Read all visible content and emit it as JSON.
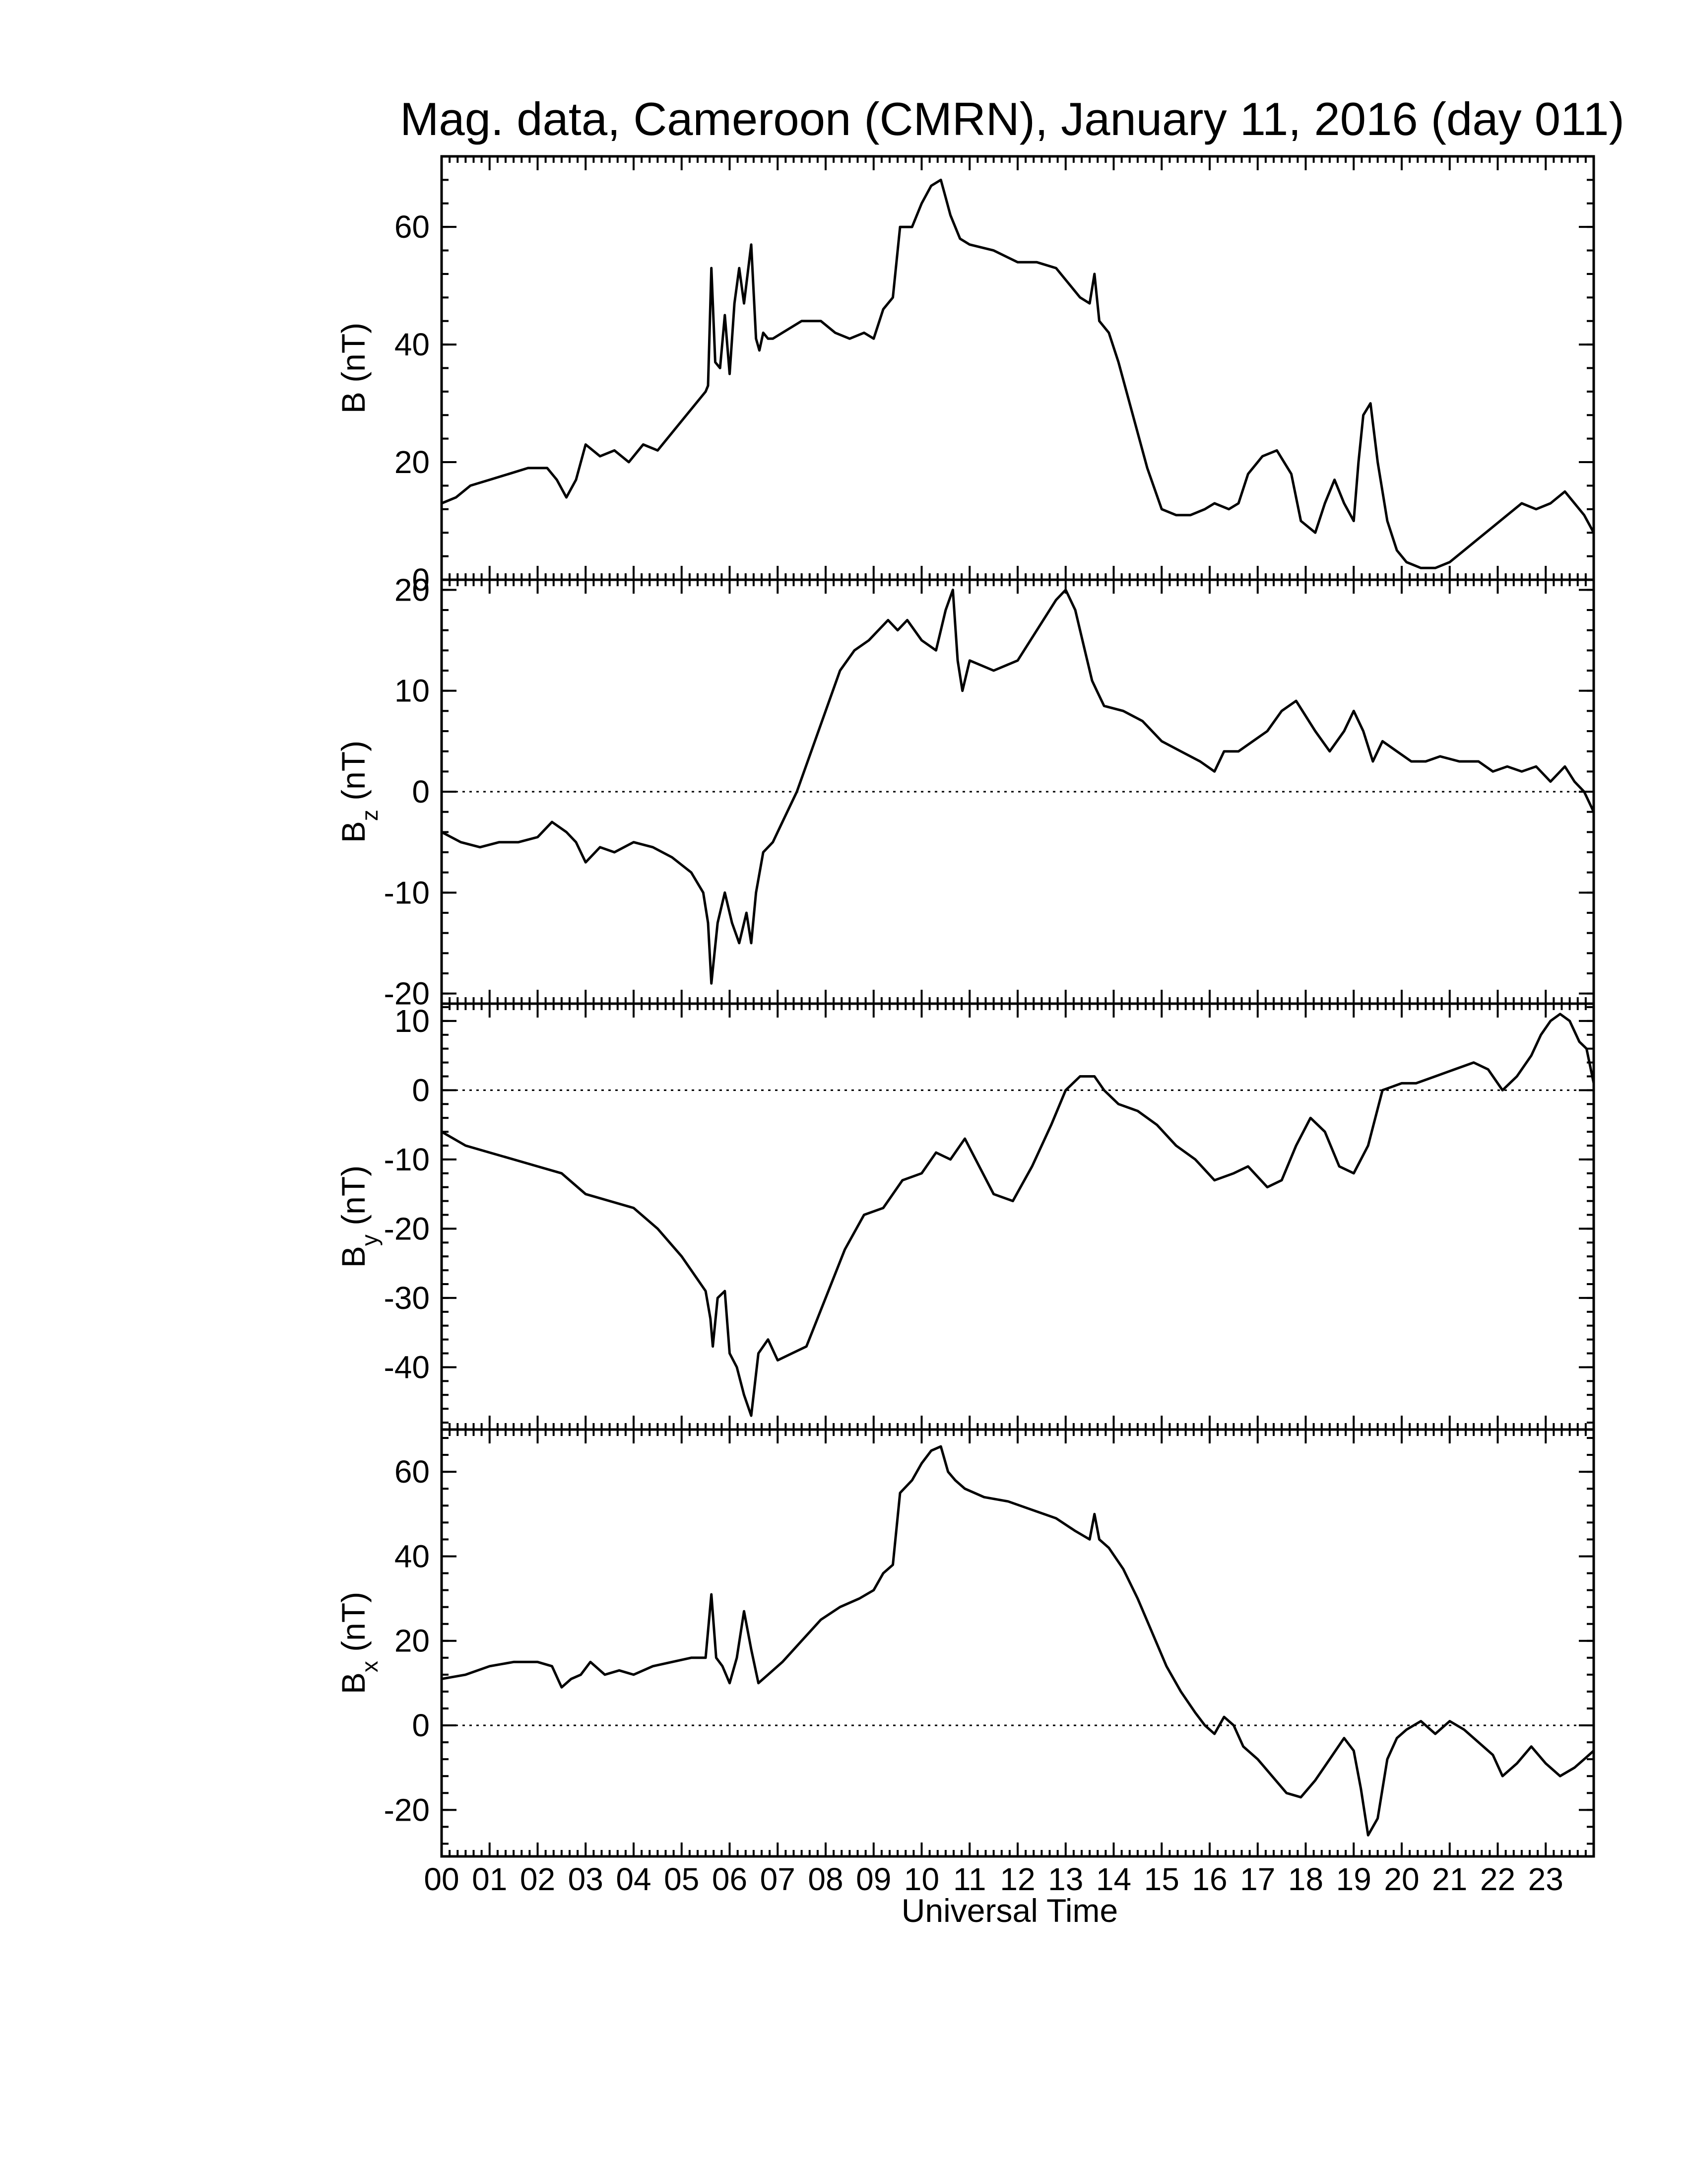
{
  "chart_data": {
    "type": "line",
    "title": "Mag. data, Cameroon (CMRN), January 11, 2016 (day 011)",
    "xlabel": "Universal Time",
    "x_tick_labels": [
      "00",
      "01",
      "02",
      "03",
      "04",
      "05",
      "06",
      "07",
      "08",
      "09",
      "10",
      "11",
      "12",
      "13",
      "14",
      "15",
      "16",
      "17",
      "18",
      "19",
      "20",
      "21",
      "22",
      "23"
    ],
    "xlim": [
      0,
      24
    ],
    "panels": [
      {
        "key": "B",
        "ylabel": "B (nT)",
        "ylabel_main": "B",
        "ylabel_sub": "",
        "ylabel_unit": " (nT)",
        "ylim": [
          0,
          72
        ],
        "yticks": [
          0,
          20,
          40,
          60
        ],
        "y_tick_labels": [
          "0",
          "20",
          "40",
          "60"
        ],
        "zero_line": false,
        "x": [
          0,
          0.3,
          0.6,
          1.0,
          1.4,
          1.8,
          2.2,
          2.4,
          2.6,
          2.8,
          3.0,
          3.3,
          3.6,
          3.9,
          4.2,
          4.5,
          5.0,
          5.3,
          5.5,
          5.55,
          5.62,
          5.7,
          5.8,
          5.9,
          6.0,
          6.1,
          6.2,
          6.3,
          6.45,
          6.55,
          6.62,
          6.7,
          6.8,
          6.9,
          7.1,
          7.5,
          7.9,
          8.2,
          8.5,
          8.8,
          9.0,
          9.2,
          9.4,
          9.55,
          9.8,
          10.0,
          10.2,
          10.4,
          10.5,
          10.6,
          10.8,
          11.0,
          11.5,
          12.0,
          12.4,
          12.8,
          13.0,
          13.3,
          13.5,
          13.6,
          13.7,
          13.9,
          14.1,
          14.4,
          14.7,
          15.0,
          15.3,
          15.6,
          15.9,
          16.1,
          16.4,
          16.6,
          16.8,
          17.1,
          17.4,
          17.7,
          17.9,
          18.2,
          18.4,
          18.6,
          18.8,
          19.0,
          19.1,
          19.2,
          19.35,
          19.5,
          19.7,
          19.9,
          20.1,
          20.4,
          20.7,
          21.0,
          21.3,
          21.6,
          21.9,
          22.2,
          22.5,
          22.8,
          23.1,
          23.4,
          23.6,
          23.8,
          24.0
        ],
        "values": [
          13,
          14,
          16,
          17,
          18,
          19,
          19,
          17,
          14,
          17,
          23,
          21,
          22,
          20,
          23,
          22,
          27,
          30,
          32,
          33,
          53,
          37,
          36,
          45,
          35,
          47,
          53,
          47,
          57,
          41,
          39,
          42,
          41,
          41,
          42,
          44,
          44,
          42,
          41,
          42,
          41,
          46,
          48,
          60,
          60,
          64,
          67,
          68,
          65,
          62,
          58,
          57,
          56,
          54,
          54,
          53,
          51,
          48,
          47,
          52,
          44,
          42,
          37,
          28,
          19,
          12,
          11,
          11,
          12,
          13,
          12,
          13,
          18,
          21,
          22,
          18,
          10,
          8,
          13,
          17,
          13,
          10,
          20,
          28,
          30,
          20,
          10,
          5,
          3,
          2,
          2,
          3,
          5,
          7,
          9,
          11,
          13,
          12,
          13,
          15,
          13,
          11,
          8
        ]
      },
      {
        "key": "Bz",
        "ylabel": "Bz (nT)",
        "ylabel_main": "B",
        "ylabel_sub": "z",
        "ylabel_unit": " (nT)",
        "ylim": [
          -21,
          21
        ],
        "yticks": [
          -20,
          -10,
          0,
          10,
          20
        ],
        "y_tick_labels": [
          "-20",
          "-10",
          "0",
          "10",
          "20"
        ],
        "zero_line": true,
        "x": [
          0,
          0.4,
          0.8,
          1.2,
          1.6,
          2.0,
          2.3,
          2.6,
          2.8,
          3.0,
          3.3,
          3.6,
          4.0,
          4.4,
          4.8,
          5.2,
          5.45,
          5.55,
          5.62,
          5.75,
          5.9,
          6.05,
          6.2,
          6.35,
          6.45,
          6.55,
          6.7,
          6.9,
          7.1,
          7.4,
          7.7,
          8.0,
          8.3,
          8.6,
          8.9,
          9.1,
          9.3,
          9.5,
          9.7,
          10.0,
          10.3,
          10.5,
          10.65,
          10.75,
          10.85,
          11.0,
          11.5,
          12.0,
          12.4,
          12.8,
          13.0,
          13.2,
          13.4,
          13.55,
          13.65,
          13.8,
          14.2,
          14.6,
          15.0,
          15.4,
          15.8,
          16.1,
          16.3,
          16.6,
          16.9,
          17.2,
          17.5,
          17.8,
          18.0,
          18.2,
          18.5,
          18.8,
          19.0,
          19.2,
          19.4,
          19.6,
          19.9,
          20.2,
          20.5,
          20.8,
          21.2,
          21.6,
          21.9,
          22.2,
          22.5,
          22.8,
          23.1,
          23.4,
          23.6,
          23.8,
          24.0
        ],
        "values": [
          -4,
          -5,
          -5.5,
          -5,
          -5,
          -4.5,
          -3,
          -4,
          -5,
          -7,
          -5.5,
          -6,
          -5,
          -5.5,
          -6.5,
          -8,
          -10,
          -13,
          -19,
          -13,
          -10,
          -13,
          -15,
          -12,
          -15,
          -10,
          -6,
          -5,
          -3,
          0,
          4,
          8,
          12,
          14,
          15,
          16,
          17,
          16,
          17,
          15,
          14,
          18,
          20,
          13,
          10,
          13,
          12,
          13,
          16,
          19,
          20,
          18,
          14,
          11,
          10,
          8.5,
          8,
          7,
          5,
          4,
          3,
          2,
          4,
          4,
          5,
          6,
          8,
          9,
          7.5,
          6,
          4,
          6,
          8,
          6,
          3,
          5,
          4,
          3,
          3,
          3.5,
          3,
          3,
          2,
          2.5,
          2,
          2.5,
          1,
          2.5,
          1,
          0,
          -2
        ]
      },
      {
        "key": "By",
        "ylabel": "By (nT)",
        "ylabel_main": "B",
        "ylabel_sub": "y",
        "ylabel_unit": " (nT)",
        "ylim": [
          -49,
          12.5
        ],
        "yticks": [
          -40,
          -30,
          -20,
          -10,
          0,
          10
        ],
        "y_tick_labels": [
          "-40",
          "-30",
          "-20",
          "-10",
          "0",
          "10"
        ],
        "zero_line": true,
        "x": [
          0,
          0.5,
          1.0,
          1.5,
          2.0,
          2.5,
          3.0,
          3.5,
          4.0,
          4.5,
          5.0,
          5.3,
          5.5,
          5.6,
          5.65,
          5.75,
          5.9,
          6.0,
          6.15,
          6.3,
          6.45,
          6.6,
          6.8,
          7.0,
          7.3,
          7.6,
          8.0,
          8.4,
          8.8,
          9.2,
          9.6,
          10.0,
          10.3,
          10.6,
          10.9,
          11.2,
          11.5,
          11.9,
          12.3,
          12.7,
          13.0,
          13.3,
          13.6,
          13.8,
          14.1,
          14.5,
          14.9,
          15.3,
          15.7,
          16.1,
          16.5,
          16.8,
          17.2,
          17.5,
          17.8,
          18.1,
          18.4,
          18.7,
          19.0,
          19.3,
          19.6,
          20.0,
          20.3,
          20.7,
          21.1,
          21.5,
          21.8,
          22.1,
          22.4,
          22.7,
          22.9,
          23.1,
          23.3,
          23.5,
          23.7,
          23.85,
          24.0
        ],
        "values": [
          -6,
          -8,
          -9,
          -10,
          -11,
          -12,
          -15,
          -16,
          -17,
          -20,
          -24,
          -27,
          -29,
          -33,
          -37,
          -30,
          -29,
          -38,
          -40,
          -44,
          -47,
          -38,
          -36,
          -39,
          -38,
          -37,
          -30,
          -23,
          -18,
          -17,
          -13,
          -12,
          -9,
          -10,
          -7,
          -11,
          -15,
          -16,
          -11,
          -5,
          0,
          2,
          2,
          0,
          -2,
          -3,
          -5,
          -8,
          -10,
          -13,
          -12,
          -11,
          -14,
          -13,
          -8,
          -4,
          -6,
          -11,
          -12,
          -8,
          0,
          1,
          1,
          2,
          3,
          4,
          3,
          0,
          2,
          5,
          8,
          10,
          11,
          10,
          7,
          6,
          1
        ]
      },
      {
        "key": "Bx",
        "ylabel": "Bx (nT)",
        "ylabel_main": "B",
        "ylabel_sub": "x",
        "ylabel_unit": " (nT)",
        "ylim": [
          -31,
          70
        ],
        "yticks": [
          -20,
          0,
          20,
          40,
          60
        ],
        "y_tick_labels": [
          "-20",
          "0",
          "20",
          "40",
          "60"
        ],
        "zero_line": true,
        "x": [
          0,
          0.5,
          1.0,
          1.5,
          2.0,
          2.3,
          2.5,
          2.7,
          2.9,
          3.1,
          3.4,
          3.7,
          4.0,
          4.4,
          4.8,
          5.2,
          5.5,
          5.62,
          5.72,
          5.85,
          6.0,
          6.15,
          6.3,
          6.45,
          6.6,
          6.8,
          7.1,
          7.5,
          7.9,
          8.3,
          8.7,
          9.0,
          9.2,
          9.4,
          9.55,
          9.8,
          10.0,
          10.2,
          10.4,
          10.55,
          10.7,
          10.9,
          11.3,
          11.8,
          12.3,
          12.8,
          13.2,
          13.5,
          13.6,
          13.7,
          13.9,
          14.2,
          14.5,
          14.8,
          15.1,
          15.4,
          15.7,
          15.9,
          16.1,
          16.3,
          16.5,
          16.7,
          17.0,
          17.3,
          17.6,
          17.9,
          18.2,
          18.5,
          18.8,
          19.0,
          19.15,
          19.3,
          19.5,
          19.7,
          19.9,
          20.1,
          20.4,
          20.7,
          21.0,
          21.3,
          21.6,
          21.9,
          22.1,
          22.4,
          22.7,
          23.0,
          23.3,
          23.6,
          23.8,
          24.0
        ],
        "values": [
          11,
          12,
          14,
          15,
          15,
          14,
          9,
          11,
          12,
          15,
          12,
          13,
          12,
          14,
          15,
          16,
          16,
          31,
          16,
          14,
          10,
          16,
          27,
          18,
          10,
          12,
          15,
          20,
          25,
          28,
          30,
          32,
          36,
          38,
          55,
          58,
          62,
          65,
          66,
          60,
          58,
          56,
          54,
          53,
          51,
          49,
          46,
          44,
          50,
          44,
          42,
          37,
          30,
          22,
          14,
          8,
          3,
          0,
          -2,
          2,
          0,
          -5,
          -8,
          -12,
          -16,
          -17,
          -13,
          -8,
          -3,
          -6,
          -15,
          -26,
          -22,
          -8,
          -3,
          -1,
          1,
          -2,
          1,
          -1,
          -4,
          -7,
          -12,
          -9,
          -5,
          -9,
          -12,
          -10,
          -8,
          -6
        ]
      }
    ]
  }
}
